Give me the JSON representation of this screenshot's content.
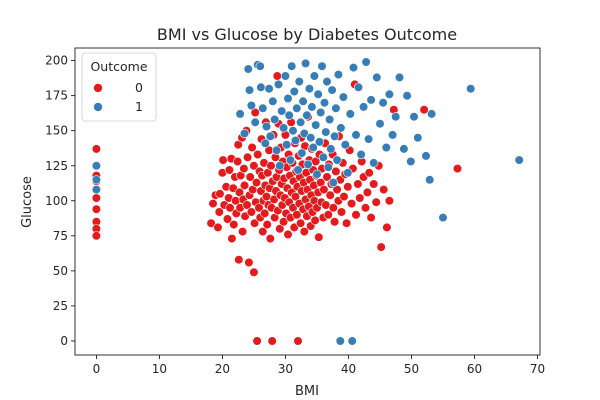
{
  "chart_data": {
    "type": "scatter",
    "title": "BMI vs Glucose by Diabetes Outcome",
    "xlabel": "BMI",
    "ylabel": "Glucose",
    "xlim": [
      -3.4,
      70.4
    ],
    "ylim": [
      -10,
      209
    ],
    "xticks": [
      0,
      10,
      20,
      30,
      40,
      50,
      60,
      70
    ],
    "yticks": [
      0,
      25,
      50,
      75,
      100,
      125,
      150,
      175,
      200
    ],
    "grid": false,
    "legend": {
      "title": "Outcome",
      "placement": "top-left"
    },
    "colors": {
      "0": "#e41a1c",
      "1": "#377eb8",
      "marker_edge": "#ffffff",
      "axis": "#000000"
    },
    "series": [
      {
        "name": "0",
        "points": [
          [
            0,
            137
          ],
          [
            0,
            118
          ],
          [
            0,
            114
          ],
          [
            0,
            108
          ],
          [
            0,
            102
          ],
          [
            0,
            94
          ],
          [
            0,
            85
          ],
          [
            0,
            80
          ],
          [
            0,
            75
          ],
          [
            18.2,
            84
          ],
          [
            18.5,
            98
          ],
          [
            18.9,
            104
          ],
          [
            19.3,
            81
          ],
          [
            19.5,
            92
          ],
          [
            19.6,
            105
          ],
          [
            20.0,
            120
          ],
          [
            20.1,
            129
          ],
          [
            20.3,
            97
          ],
          [
            20.6,
            110
          ],
          [
            20.8,
            87
          ],
          [
            21.0,
            102
          ],
          [
            21.1,
            122
          ],
          [
            21.2,
            95
          ],
          [
            21.4,
            130
          ],
          [
            21.5,
            73
          ],
          [
            21.7,
            109
          ],
          [
            21.8,
            83
          ],
          [
            22.0,
            117
          ],
          [
            22.1,
            100
          ],
          [
            22.2,
            91
          ],
          [
            22.4,
            128
          ],
          [
            22.5,
            140
          ],
          [
            22.6,
            58
          ],
          [
            22.7,
            106
          ],
          [
            22.8,
            95
          ],
          [
            22.9,
            118
          ],
          [
            23.1,
            145
          ],
          [
            23.2,
            78
          ],
          [
            23.3,
            101
          ],
          [
            23.4,
            123
          ],
          [
            23.5,
            111
          ],
          [
            23.6,
            89
          ],
          [
            23.8,
            150
          ],
          [
            23.9,
            97
          ],
          [
            24.0,
            131
          ],
          [
            24.2,
            56
          ],
          [
            24.3,
            104
          ],
          [
            24.4,
            117
          ],
          [
            24.6,
            92
          ],
          [
            24.7,
            138
          ],
          [
            24.8,
            108
          ],
          [
            25.0,
            125
          ],
          [
            25.0,
            49
          ],
          [
            25.1,
            84
          ],
          [
            25.2,
            163
          ],
          [
            25.3,
            99
          ],
          [
            25.4,
            113
          ],
          [
            25.5,
            0
          ],
          [
            25.6,
            133
          ],
          [
            25.8,
            95
          ],
          [
            25.9,
            121
          ],
          [
            26.0,
            88
          ],
          [
            26.1,
            107
          ],
          [
            26.2,
            144
          ],
          [
            26.3,
            118
          ],
          [
            26.4,
            78
          ],
          [
            26.5,
            100
          ],
          [
            26.6,
            127
          ],
          [
            26.7,
            91
          ],
          [
            26.8,
            111
          ],
          [
            26.9,
            156
          ],
          [
            27.0,
            103
          ],
          [
            27.1,
            83
          ],
          [
            27.2,
            120
          ],
          [
            27.3,
            97
          ],
          [
            27.4,
            136
          ],
          [
            27.5,
            109
          ],
          [
            27.6,
            73
          ],
          [
            27.7,
            125
          ],
          [
            27.8,
            95
          ],
          [
            27.9,
            0
          ],
          [
            28.0,
            114
          ],
          [
            28.1,
            147
          ],
          [
            28.2,
            101
          ],
          [
            28.3,
            88
          ],
          [
            28.4,
            131
          ],
          [
            28.5,
            107
          ],
          [
            28.6,
            117
          ],
          [
            28.7,
            189
          ],
          [
            28.8,
            93
          ],
          [
            28.9,
            155
          ],
          [
            29.0,
            122
          ],
          [
            29.1,
            80
          ],
          [
            29.2,
            104
          ],
          [
            29.3,
            138
          ],
          [
            29.4,
            112
          ],
          [
            29.5,
            97
          ],
          [
            29.6,
            128
          ],
          [
            29.7,
            85
          ],
          [
            29.8,
            116
          ],
          [
            29.9,
            102
          ],
          [
            30.0,
            147
          ],
          [
            30.1,
            91
          ],
          [
            30.2,
            124
          ],
          [
            30.3,
            109
          ],
          [
            30.4,
            76
          ],
          [
            30.5,
            133
          ],
          [
            30.6,
            99
          ],
          [
            30.7,
            118
          ],
          [
            30.8,
            88
          ],
          [
            30.9,
            156
          ],
          [
            31.0,
            106
          ],
          [
            31.1,
            127
          ],
          [
            31.2,
            95
          ],
          [
            31.3,
            114
          ],
          [
            31.4,
            81
          ],
          [
            31.5,
            141
          ],
          [
            31.6,
            103
          ],
          [
            31.7,
            121
          ],
          [
            31.8,
            90
          ],
          [
            31.9,
            110
          ],
          [
            32.0,
            0
          ],
          [
            32.1,
            132
          ],
          [
            32.2,
            98
          ],
          [
            32.3,
            117
          ],
          [
            32.4,
            84
          ],
          [
            32.5,
            145
          ],
          [
            32.6,
            107
          ],
          [
            32.7,
            126
          ],
          [
            32.8,
            94
          ],
          [
            32.9,
            113
          ],
          [
            33.0,
            78
          ],
          [
            33.1,
            139
          ],
          [
            33.2,
            101
          ],
          [
            33.3,
            120
          ],
          [
            33.4,
            89
          ],
          [
            33.5,
            108
          ],
          [
            33.6,
            160
          ],
          [
            33.7,
            96
          ],
          [
            33.8,
            129
          ],
          [
            33.9,
            115
          ],
          [
            34.0,
            82
          ],
          [
            34.1,
            104
          ],
          [
            34.2,
            137
          ],
          [
            34.3,
            92
          ],
          [
            34.4,
            122
          ],
          [
            34.5,
            111
          ],
          [
            34.6,
            100
          ],
          [
            34.7,
            86
          ],
          [
            34.8,
            128
          ],
          [
            34.9,
            118
          ],
          [
            35.0,
            95
          ],
          [
            35.2,
            106
          ],
          [
            35.3,
            74
          ],
          [
            35.4,
            133
          ],
          [
            35.6,
            113
          ],
          [
            35.7,
            99
          ],
          [
            35.8,
            123
          ],
          [
            36.0,
            88
          ],
          [
            36.1,
            108
          ],
          [
            36.3,
            141
          ],
          [
            36.4,
            97
          ],
          [
            36.6,
            117
          ],
          [
            36.8,
            90
          ],
          [
            36.9,
            126
          ],
          [
            37.1,
            104
          ],
          [
            37.3,
            112
          ],
          [
            37.5,
            133
          ],
          [
            37.6,
            95
          ],
          [
            37.8,
            85
          ],
          [
            38.0,
            121
          ],
          [
            38.2,
            108
          ],
          [
            38.4,
            100
          ],
          [
            38.5,
            146
          ],
          [
            38.7,
            115
          ],
          [
            38.9,
            92
          ],
          [
            39.1,
            127
          ],
          [
            39.3,
            103
          ],
          [
            39.5,
            119
          ],
          [
            39.7,
            84
          ],
          [
            39.9,
            110
          ],
          [
            40.2,
            136
          ],
          [
            40.5,
            98
          ],
          [
            40.7,
            123
          ],
          [
            41.0,
            183
          ],
          [
            41.2,
            90
          ],
          [
            41.5,
            112
          ],
          [
            41.8,
            102
          ],
          [
            42.1,
            128
          ],
          [
            42.4,
            117
          ],
          [
            42.7,
            95
          ],
          [
            43.0,
            106
          ],
          [
            43.3,
            120
          ],
          [
            43.6,
            88
          ],
          [
            44.0,
            112
          ],
          [
            44.4,
            99
          ],
          [
            44.8,
            125
          ],
          [
            45.2,
            67
          ],
          [
            45.6,
            108
          ],
          [
            46.1,
            81
          ],
          [
            46.5,
            100
          ],
          [
            47.2,
            165
          ],
          [
            52.0,
            165
          ],
          [
            57.3,
            123
          ]
        ]
      },
      {
        "name": "1",
        "points": [
          [
            0,
            125
          ],
          [
            0,
            115
          ],
          [
            0,
            108
          ],
          [
            22.8,
            162
          ],
          [
            23.5,
            148
          ],
          [
            24.1,
            194
          ],
          [
            24.3,
            179
          ],
          [
            24.6,
            168
          ],
          [
            25.2,
            156
          ],
          [
            25.6,
            197
          ],
          [
            26.0,
            196
          ],
          [
            26.1,
            181
          ],
          [
            26.4,
            166
          ],
          [
            26.8,
            141
          ],
          [
            27.0,
            153
          ],
          [
            27.4,
            180
          ],
          [
            27.6,
            146
          ],
          [
            28.0,
            171
          ],
          [
            28.3,
            158
          ],
          [
            28.6,
            136
          ],
          [
            28.9,
            183
          ],
          [
            29.1,
            125
          ],
          [
            29.4,
            164
          ],
          [
            29.7,
            152
          ],
          [
            30.0,
            189
          ],
          [
            30.2,
            140
          ],
          [
            30.4,
            173
          ],
          [
            30.6,
            161
          ],
          [
            30.8,
            129
          ],
          [
            31.0,
            196
          ],
          [
            31.2,
            150
          ],
          [
            31.4,
            178
          ],
          [
            31.6,
            143
          ],
          [
            31.8,
            166
          ],
          [
            32.0,
            122
          ],
          [
            32.2,
            185
          ],
          [
            32.4,
            156
          ],
          [
            32.6,
            134
          ],
          [
            32.8,
            171
          ],
          [
            33.0,
            148
          ],
          [
            33.2,
            198
          ],
          [
            33.4,
            161
          ],
          [
            33.6,
            126
          ],
          [
            33.8,
            180
          ],
          [
            34.0,
            145
          ],
          [
            34.2,
            167
          ],
          [
            34.4,
            138
          ],
          [
            34.6,
            189
          ],
          [
            34.8,
            154
          ],
          [
            35.0,
            119
          ],
          [
            35.2,
            176
          ],
          [
            35.4,
            142
          ],
          [
            35.6,
            163
          ],
          [
            35.8,
            196
          ],
          [
            36.0,
            131
          ],
          [
            36.2,
            170
          ],
          [
            36.4,
            149
          ],
          [
            36.6,
            185
          ],
          [
            36.8,
            124
          ],
          [
            37.0,
            158
          ],
          [
            37.2,
            137
          ],
          [
            37.4,
            179
          ],
          [
            37.6,
            113
          ],
          [
            37.8,
            146
          ],
          [
            38.0,
            166
          ],
          [
            38.2,
            129
          ],
          [
            38.4,
            190
          ],
          [
            38.7,
            0
          ],
          [
            38.8,
            152
          ],
          [
            39.2,
            174
          ],
          [
            39.5,
            140
          ],
          [
            39.9,
            120
          ],
          [
            40.3,
            162
          ],
          [
            40.6,
            0
          ],
          [
            40.8,
            195
          ],
          [
            41.2,
            147
          ],
          [
            41.6,
            181
          ],
          [
            42.0,
            133
          ],
          [
            42.4,
            167
          ],
          [
            42.8,
            199
          ],
          [
            43.2,
            144
          ],
          [
            43.6,
            172
          ],
          [
            44.0,
            127
          ],
          [
            44.5,
            188
          ],
          [
            45.0,
            155
          ],
          [
            45.5,
            170
          ],
          [
            46.0,
            138
          ],
          [
            46.5,
            176
          ],
          [
            47.0,
            147
          ],
          [
            47.5,
            160
          ],
          [
            48.1,
            188
          ],
          [
            48.8,
            137
          ],
          [
            49.3,
            175
          ],
          [
            49.9,
            128
          ],
          [
            50.4,
            160
          ],
          [
            51.0,
            145
          ],
          [
            52.3,
            132
          ],
          [
            52.9,
            115
          ],
          [
            53.2,
            162
          ],
          [
            55.0,
            88
          ],
          [
            59.4,
            180
          ],
          [
            67.1,
            129
          ]
        ]
      }
    ]
  }
}
